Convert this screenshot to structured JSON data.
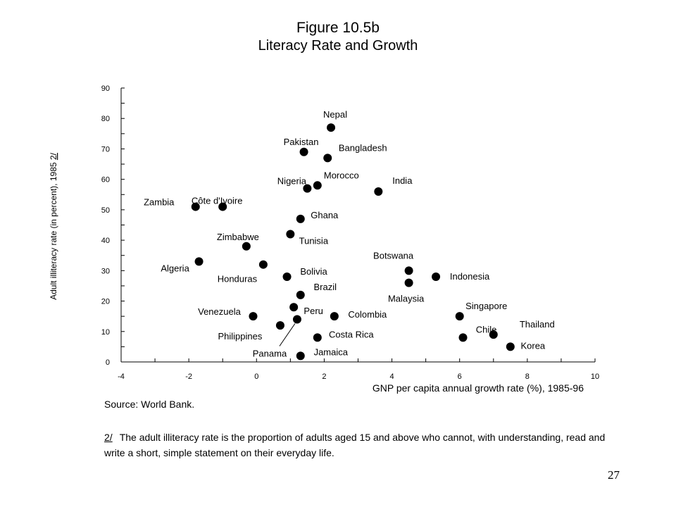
{
  "figure": {
    "title": "Figure 10.5b",
    "subtitle": "Literacy Rate and Growth"
  },
  "chart_data": {
    "type": "scatter",
    "title": "Figure 10.5b",
    "subtitle": "Literacy Rate and Growth",
    "xlabel": "GNP per capita annual growth rate (%), 1985-96",
    "ylabel_prefix": "Adult illiteracy rate  (in percent), 1985 ",
    "ylabel_note": "2/",
    "xlim": [
      -4,
      10
    ],
    "ylim": [
      0,
      90
    ],
    "xticks": [
      -4,
      -2,
      0,
      2,
      4,
      6,
      8,
      10
    ],
    "yticks": [
      0,
      10,
      20,
      30,
      40,
      50,
      60,
      70,
      80,
      90
    ],
    "grid": false,
    "marker_color": "#000000",
    "points": [
      {
        "label": "Nepal",
        "x": 2.2,
        "y": 77
      },
      {
        "label": "Pakistan",
        "x": 1.4,
        "y": 69
      },
      {
        "label": "Bangladesh",
        "x": 2.1,
        "y": 67
      },
      {
        "label": "Nigeria",
        "x": 1.5,
        "y": 57
      },
      {
        "label": "Morocco",
        "x": 1.8,
        "y": 58
      },
      {
        "label": "India",
        "x": 3.6,
        "y": 56
      },
      {
        "label": "Zambia",
        "x": -1.8,
        "y": 51
      },
      {
        "label": "Côte d'Ivoire",
        "x": -1.0,
        "y": 51
      },
      {
        "label": "Ghana",
        "x": 1.3,
        "y": 47
      },
      {
        "label": "Tunisia",
        "x": 1.0,
        "y": 42
      },
      {
        "label": "Zimbabwe",
        "x": -0.3,
        "y": 38
      },
      {
        "label": "Algeria",
        "x": -1.7,
        "y": 33
      },
      {
        "label": "Honduras",
        "x": 0.2,
        "y": 32
      },
      {
        "label": "Bolivia",
        "x": 0.9,
        "y": 28
      },
      {
        "label": "Botswana",
        "x": 4.5,
        "y": 30
      },
      {
        "label": "Indonesia",
        "x": 5.3,
        "y": 28
      },
      {
        "label": "Malaysia",
        "x": 4.5,
        "y": 26
      },
      {
        "label": "Brazil",
        "x": 1.3,
        "y": 22
      },
      {
        "label": "Peru",
        "x": 1.1,
        "y": 18
      },
      {
        "label": "Colombia",
        "x": 2.3,
        "y": 15
      },
      {
        "label": "Venezuela",
        "x": -0.1,
        "y": 15
      },
      {
        "label": "Philippines",
        "x": 0.7,
        "y": 12
      },
      {
        "label": "Panama",
        "x": 1.2,
        "y": 14
      },
      {
        "label": "Costa Rica",
        "x": 1.8,
        "y": 8
      },
      {
        "label": "Jamaica",
        "x": 1.3,
        "y": 2
      },
      {
        "label": "Singapore",
        "x": 6.0,
        "y": 15
      },
      {
        "label": "Chile",
        "x": 6.1,
        "y": 8
      },
      {
        "label": "Thailand",
        "x": 7.0,
        "y": 9
      },
      {
        "label": "Korea",
        "x": 7.5,
        "y": 5
      }
    ]
  },
  "footer": {
    "source": "Source: World Bank.",
    "note_marker": "2/",
    "note_text": "The adult illiteracy rate is the proportion of adults aged 15 and above who cannot, with understanding, read and write a short, simple statement on their everyday life.",
    "page_number": "27"
  }
}
